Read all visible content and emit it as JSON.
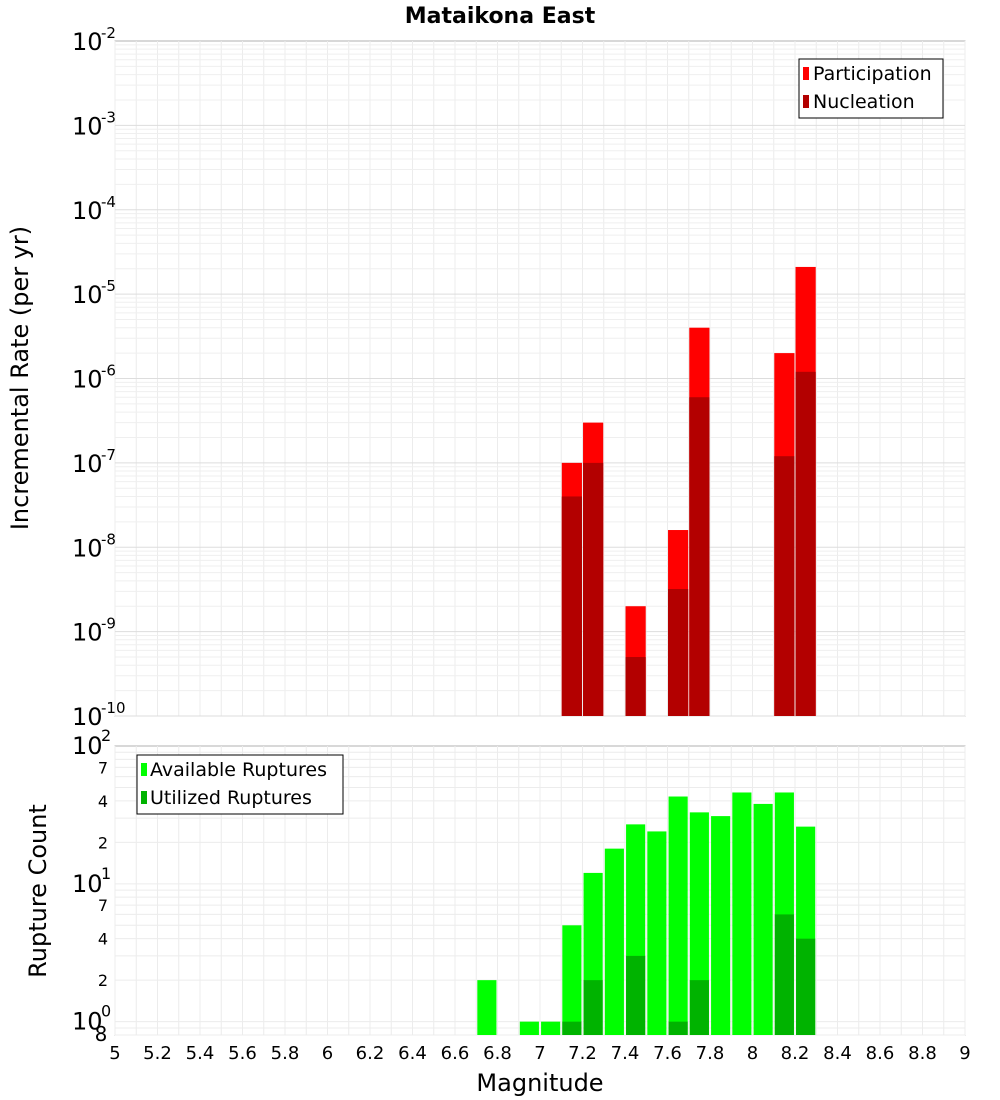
{
  "chart_data": [
    {
      "type": "bar",
      "title": "Mataikona East",
      "xlabel": "",
      "ylabel": "Incremental Rate (per yr)",
      "yscale": "log",
      "xlim": [
        5,
        9
      ],
      "ylim": [
        1e-10,
        0.01
      ],
      "grid": true,
      "legend_position": "top-right",
      "bar_width": 0.095,
      "y_ticks": [
        {
          "exp": "-10",
          "value": 1e-10
        },
        {
          "exp": "-9",
          "value": 1e-09
        },
        {
          "exp": "-8",
          "value": 1e-08
        },
        {
          "exp": "-7",
          "value": 1e-07
        },
        {
          "exp": "-6",
          "value": 1e-06
        },
        {
          "exp": "-5",
          "value": 1e-05
        },
        {
          "exp": "-4",
          "value": 0.0001
        },
        {
          "exp": "-3",
          "value": 0.001
        },
        {
          "exp": "-2",
          "value": 0.01
        }
      ],
      "series": [
        {
          "name": "Participation",
          "color": "#ff0000",
          "x": [
            7.15,
            7.25,
            7.45,
            7.65,
            7.75,
            8.15,
            8.25
          ],
          "values": [
            1e-07,
            3e-07,
            2e-09,
            1.6e-08,
            4e-06,
            2e-06,
            2.1e-05
          ]
        },
        {
          "name": "Nucleation",
          "color": "#b30000",
          "x": [
            7.15,
            7.25,
            7.45,
            7.65,
            7.75,
            8.15,
            8.25
          ],
          "values": [
            4e-08,
            1e-07,
            5e-10,
            3.2e-09,
            6e-07,
            1.2e-07,
            1.2e-06
          ]
        }
      ]
    },
    {
      "type": "bar",
      "title": "",
      "xlabel": "Magnitude",
      "ylabel": "Rupture Count",
      "yscale": "log",
      "xlim": [
        5,
        9
      ],
      "ylim": [
        0.8,
        100
      ],
      "grid": true,
      "legend_position": "top-left",
      "bar_width": 0.09,
      "x_ticks": [
        "5",
        "5.2",
        "5.4",
        "5.6",
        "5.8",
        "6",
        "6.2",
        "6.4",
        "6.6",
        "6.8",
        "7",
        "7.2",
        "7.4",
        "7.6",
        "7.8",
        "8",
        "8.2",
        "8.4",
        "8.6",
        "8.8",
        "9"
      ],
      "y_major_ticks": [
        {
          "base": "10",
          "exp": "0",
          "value": 1
        },
        {
          "base": "10",
          "exp": "1",
          "value": 10
        },
        {
          "base": "10",
          "exp": "2",
          "value": 100
        }
      ],
      "y_minor_ticks": [
        {
          "label": "8",
          "value": 0.8
        },
        {
          "label": "2",
          "value": 2
        },
        {
          "label": "4",
          "value": 4
        },
        {
          "label": "7",
          "value": 7
        },
        {
          "label": "2",
          "value": 20
        },
        {
          "label": "4",
          "value": 40
        },
        {
          "label": "7",
          "value": 70
        }
      ],
      "series": [
        {
          "name": "Available Ruptures",
          "color": "#00ff00",
          "x": [
            6.75,
            6.95,
            7.05,
            7.15,
            7.25,
            7.35,
            7.45,
            7.55,
            7.65,
            7.75,
            7.85,
            7.95,
            8.05,
            8.15,
            8.25
          ],
          "values": [
            2,
            1,
            1,
            5,
            12,
            18,
            27,
            24,
            43,
            33,
            31,
            46,
            38,
            46,
            26
          ]
        },
        {
          "name": "Utilized Ruptures",
          "color": "#00b300",
          "x": [
            7.15,
            7.25,
            7.45,
            7.65,
            7.75,
            8.15,
            8.25
          ],
          "values": [
            1,
            2,
            3,
            1,
            2,
            6,
            4
          ]
        }
      ]
    }
  ]
}
